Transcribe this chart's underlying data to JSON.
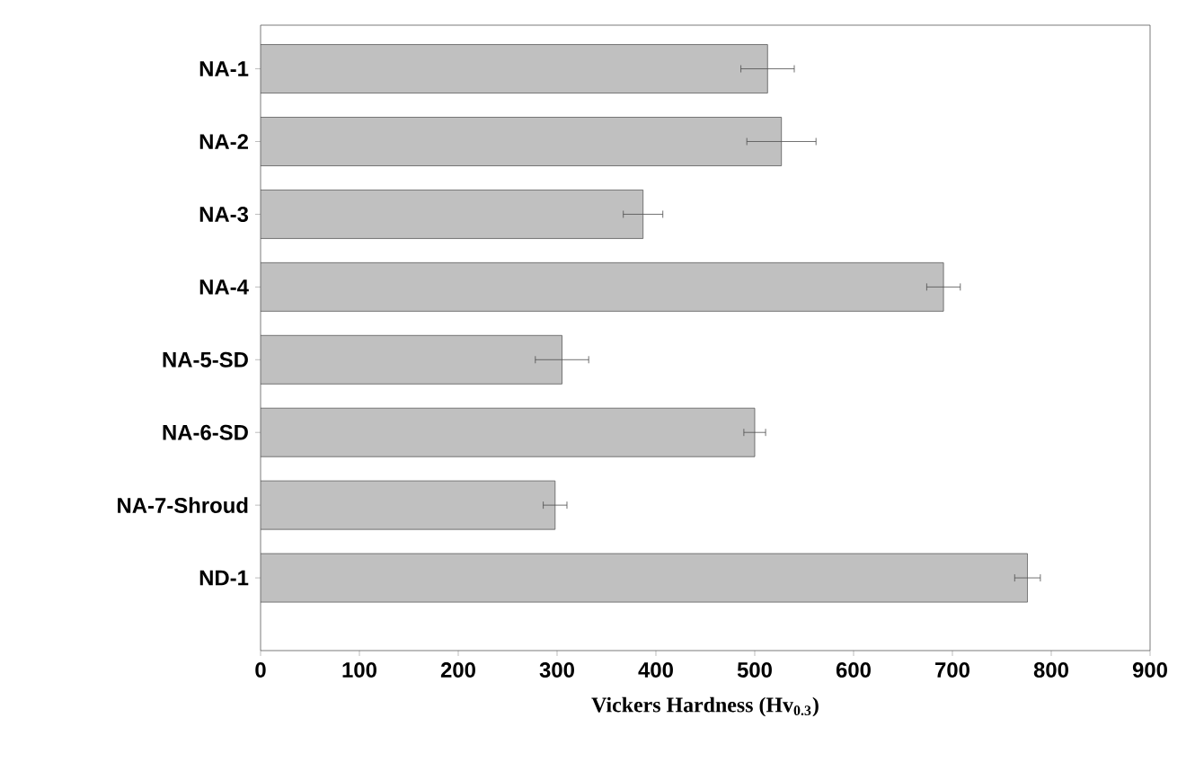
{
  "chart_data": {
    "type": "bar",
    "orientation": "horizontal",
    "xlabel": "Vickers Hardness (Hv$_{0.3}$)",
    "categories": [
      "NA-1",
      "NA-2",
      "NA-3",
      "NA-4",
      "NA-5-SD",
      "NA-6-SD",
      "NA-7-Shroud",
      "ND-1"
    ],
    "values": [
      513,
      527,
      387,
      691,
      305,
      500,
      298,
      776
    ],
    "errors": [
      27,
      35,
      20,
      17,
      27,
      11,
      12,
      13
    ],
    "color": "#c0c0c0",
    "xlim": [
      0,
      900
    ],
    "xticks": [
      0,
      100,
      200,
      300,
      400,
      500,
      600,
      700,
      800,
      900
    ]
  }
}
